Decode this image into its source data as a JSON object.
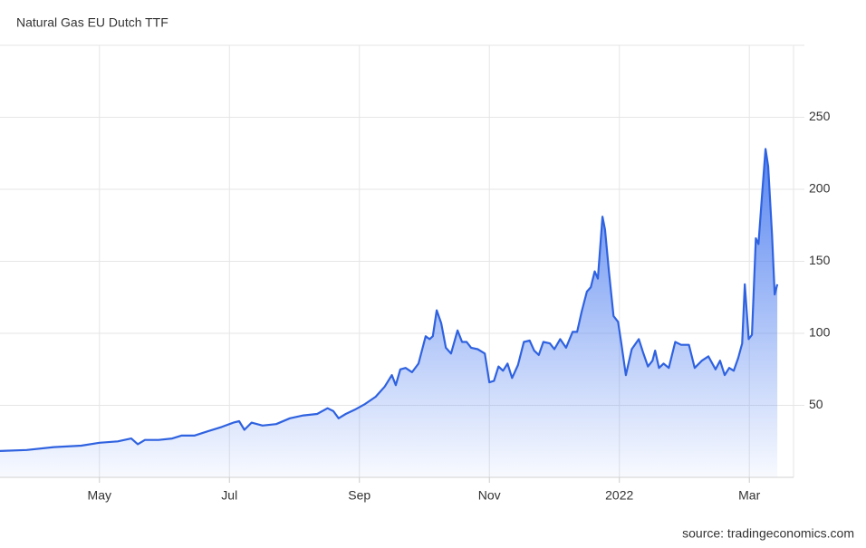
{
  "chart_data": {
    "type": "area",
    "title": "Natural Gas EU Dutch TTF",
    "source": "source: tradingeconomics.com",
    "color": "#2f62e0",
    "grid": true,
    "x": [
      3.47,
      3.88,
      4.3,
      4.72,
      5.0,
      5.28,
      5.49,
      5.59,
      5.7,
      5.91,
      6.12,
      6.26,
      6.46,
      6.67,
      6.88,
      7.06,
      7.15,
      7.23,
      7.34,
      7.51,
      7.72,
      7.93,
      8.14,
      8.35,
      8.51,
      8.6,
      8.68,
      8.79,
      8.93,
      9.09,
      9.25,
      9.39,
      9.5,
      9.56,
      9.63,
      9.71,
      9.81,
      9.91,
      10.02,
      10.08,
      10.13,
      10.19,
      10.26,
      10.33,
      10.41,
      10.51,
      10.58,
      10.65,
      10.72,
      10.82,
      10.93,
      11.0,
      11.07,
      11.14,
      11.21,
      11.28,
      11.35,
      11.44,
      11.53,
      11.62,
      11.69,
      11.76,
      11.83,
      11.93,
      12.0,
      12.09,
      12.18,
      12.28,
      12.35,
      12.42,
      12.5,
      12.56,
      12.62,
      12.67,
      12.74,
      12.78,
      12.84,
      12.91,
      12.98,
      13.03,
      13.1,
      13.19,
      13.3,
      13.37,
      13.44,
      13.51,
      13.55,
      13.61,
      13.68,
      13.76,
      13.86,
      13.95,
      14.07,
      14.16,
      14.27,
      14.37,
      14.48,
      14.55,
      14.62,
      14.69,
      14.76,
      14.83,
      14.89,
      14.93,
      14.99,
      15.04,
      15.1,
      15.14,
      15.2,
      15.25,
      15.29,
      15.35,
      15.39,
      15.43
    ],
    "values": [
      18.3,
      19,
      21,
      22,
      24,
      25,
      27,
      23,
      26,
      26,
      27,
      29,
      29,
      32,
      35,
      38,
      39,
      33,
      38,
      36,
      37,
      41,
      43,
      44,
      48,
      46,
      41,
      44,
      47,
      51,
      56,
      63,
      71,
      64,
      75,
      76,
      73,
      79,
      98,
      96,
      98,
      116,
      107,
      90,
      86,
      102,
      94,
      94,
      90,
      89,
      86,
      66,
      67,
      77,
      74,
      79,
      69,
      78,
      94,
      95,
      88,
      85,
      94,
      93,
      89,
      96,
      90,
      101,
      101,
      115,
      129,
      132,
      143,
      138,
      181,
      172,
      143,
      112,
      108,
      93,
      71,
      89,
      96,
      86,
      77,
      81,
      88,
      76,
      79,
      76,
      94,
      92,
      92,
      76,
      81,
      84,
      75,
      81,
      71,
      76,
      74,
      83,
      93,
      134,
      96,
      99,
      166,
      162,
      199,
      228,
      216,
      168,
      127,
      134
    ],
    "xlim": [
      3.47,
      15.68
    ],
    "xticks": [
      {
        "value": 5,
        "label": "May"
      },
      {
        "value": 7,
        "label": "Jul"
      },
      {
        "value": 9,
        "label": "Sep"
      },
      {
        "value": 11,
        "label": "Nov"
      },
      {
        "value": 13,
        "label": "2022"
      },
      {
        "value": 15,
        "label": "Mar"
      }
    ],
    "ylim": [
      0,
      300
    ],
    "yticks": [
      50,
      100,
      150,
      200,
      250
    ]
  }
}
